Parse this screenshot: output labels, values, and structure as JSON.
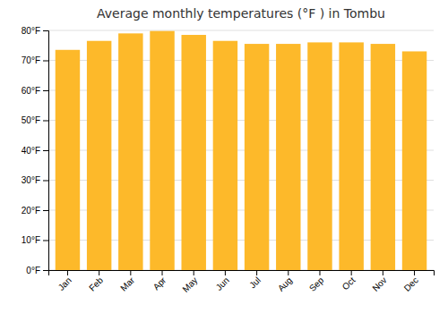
{
  "chart_data": {
    "type": "bar",
    "title": "Average monthly temperatures (°F ) in Tombu",
    "categories": [
      "Jan",
      "Feb",
      "Mar",
      "Apr",
      "May",
      "Jun",
      "Jul",
      "Aug",
      "Sep",
      "Oct",
      "Nov",
      "Dec"
    ],
    "values": [
      73.5,
      76.5,
      79.0,
      79.8,
      78.5,
      76.5,
      75.5,
      75.5,
      76.0,
      76.0,
      75.5,
      73.0
    ],
    "color": "#FDB92A",
    "ylim": [
      0,
      80
    ],
    "yticks": [
      {
        "value": 0,
        "label": "0°F"
      },
      {
        "value": 10,
        "label": "10°F"
      },
      {
        "value": 20,
        "label": "20°F"
      },
      {
        "value": 30,
        "label": "30°F"
      },
      {
        "value": 40,
        "label": "40°F"
      },
      {
        "value": 50,
        "label": "50°F"
      },
      {
        "value": 60,
        "label": "60°F"
      },
      {
        "value": 70,
        "label": "70°F"
      },
      {
        "value": 80,
        "label": "80°F"
      }
    ],
    "grid": true
  }
}
